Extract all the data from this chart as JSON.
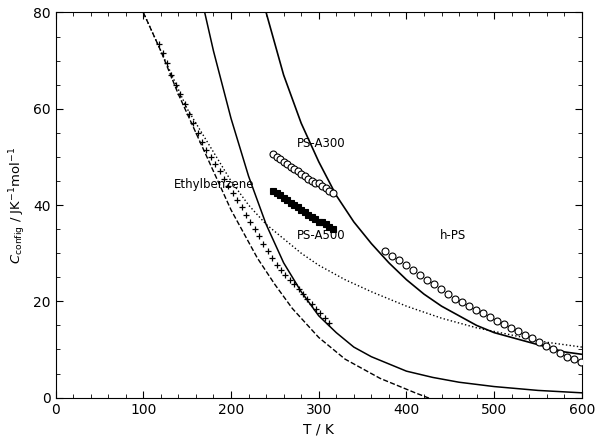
{
  "title": "",
  "xlabel": "T / K",
  "ylabel": "$C_{\\mathrm{config}}$ / JK$^{-1}$mol$^{-1}$",
  "xlim": [
    0,
    600
  ],
  "ylim": [
    0,
    80
  ],
  "xticks": [
    0,
    100,
    200,
    300,
    400,
    500,
    600
  ],
  "yticks": [
    0,
    20,
    40,
    60,
    80
  ],
  "bg_color": "white",
  "label_ethylbenzene": "Ethylbenzene",
  "label_ps_a300": "PS-A300",
  "label_ps_a500": "PS-A500",
  "label_hps": "h-PS",
  "ethylbenzene_x": [
    118,
    122,
    127,
    132,
    137,
    142,
    147,
    152,
    157,
    162,
    167,
    172,
    177,
    182,
    187,
    192,
    197,
    202,
    207,
    212,
    217,
    222,
    227,
    232,
    237,
    242,
    247,
    252,
    257,
    262,
    267,
    272,
    277,
    282,
    287,
    292,
    297,
    302,
    307,
    312
  ],
  "ethylbenzene_y": [
    73.5,
    71.5,
    69.5,
    67,
    65,
    63,
    61,
    59,
    57,
    55,
    53,
    51.5,
    50,
    48.5,
    47,
    45.5,
    44,
    42.5,
    41,
    39.5,
    38,
    36.5,
    35,
    33.5,
    32,
    30.5,
    29,
    27.5,
    26.5,
    25.5,
    24.5,
    23.5,
    22.5,
    21.5,
    20.5,
    19.5,
    18.5,
    17.5,
    16.5,
    15.5
  ],
  "ps_a300_x": [
    248,
    252,
    256,
    260,
    264,
    268,
    272,
    276,
    280,
    284,
    288,
    292,
    296,
    300,
    304,
    308,
    312,
    316
  ],
  "ps_a300_y": [
    50.5,
    50,
    49.5,
    49,
    48.5,
    48,
    47.5,
    47,
    46.5,
    46,
    45.5,
    45,
    44.5,
    44.5,
    44,
    43.5,
    43,
    42.5
  ],
  "ps_a500_x": [
    248,
    252,
    256,
    260,
    264,
    268,
    272,
    276,
    280,
    284,
    288,
    292,
    296,
    300,
    304,
    308,
    312,
    316
  ],
  "ps_a500_y": [
    43,
    42.5,
    42,
    41.5,
    41,
    40.5,
    40,
    39.5,
    39,
    38.5,
    38,
    37.5,
    37,
    36.5,
    36.5,
    36,
    35.5,
    35
  ],
  "hps_x": [
    375,
    383,
    391,
    399,
    407,
    415,
    423,
    431,
    439,
    447,
    455,
    463,
    471,
    479,
    487,
    495,
    503,
    511,
    519,
    527,
    535,
    543,
    551,
    559,
    567,
    575,
    583,
    591,
    599
  ],
  "hps_y": [
    30.5,
    29.5,
    28.5,
    27.5,
    26.5,
    25.5,
    24.5,
    23.5,
    22.5,
    21.5,
    20.5,
    19.8,
    19,
    18.2,
    17.5,
    16.8,
    16,
    15.2,
    14.5,
    13.8,
    13,
    12.3,
    11.5,
    10.8,
    10,
    9.3,
    8.5,
    8,
    7.3
  ],
  "curve_steep_solid_x": [
    170,
    180,
    190,
    200,
    210,
    220,
    230,
    240,
    250,
    260,
    270,
    280,
    290,
    300,
    320,
    340,
    360,
    380,
    400,
    430,
    460,
    500,
    550,
    600
  ],
  "curve_steep_solid_y": [
    80,
    72,
    65,
    58,
    52,
    46,
    41,
    36,
    32,
    28,
    25,
    22,
    19.5,
    17,
    13.5,
    10.5,
    8.5,
    7,
    5.5,
    4.2,
    3.2,
    2.3,
    1.5,
    1.0
  ],
  "curve_dotted_x": [
    100,
    110,
    120,
    130,
    140,
    150,
    160,
    170,
    180,
    190,
    200,
    220,
    240,
    260,
    280,
    300,
    330,
    360,
    400,
    440,
    480,
    520,
    560,
    600
  ],
  "curve_dotted_y": [
    80,
    76,
    72,
    68,
    64,
    60,
    57,
    54,
    51,
    48,
    45,
    40,
    36,
    33,
    30,
    27.5,
    24.5,
    22,
    19,
    16.5,
    14.5,
    13,
    11.5,
    10.5
  ],
  "curve_dashed_x": [
    100,
    110,
    120,
    130,
    140,
    150,
    160,
    170,
    180,
    190,
    200,
    215,
    230,
    250,
    270,
    300,
    330,
    370,
    410,
    460,
    520,
    580,
    620
  ],
  "curve_dashed_y": [
    80,
    76,
    72,
    67.5,
    63,
    59,
    55,
    51,
    47,
    43,
    39,
    34,
    29,
    23.5,
    18.5,
    12.5,
    8,
    4,
    1,
    -2.5,
    -6,
    -9,
    -11
  ],
  "curve_right_solid_x": [
    240,
    260,
    280,
    300,
    320,
    340,
    360,
    380,
    400,
    420,
    440,
    460,
    480,
    500,
    520,
    540,
    560,
    580,
    600
  ],
  "curve_right_solid_y": [
    80,
    67,
    57,
    49,
    42,
    36.5,
    32,
    28,
    24.5,
    21.5,
    19,
    17,
    15,
    13.5,
    12.5,
    11.5,
    10.5,
    9.5,
    9
  ]
}
